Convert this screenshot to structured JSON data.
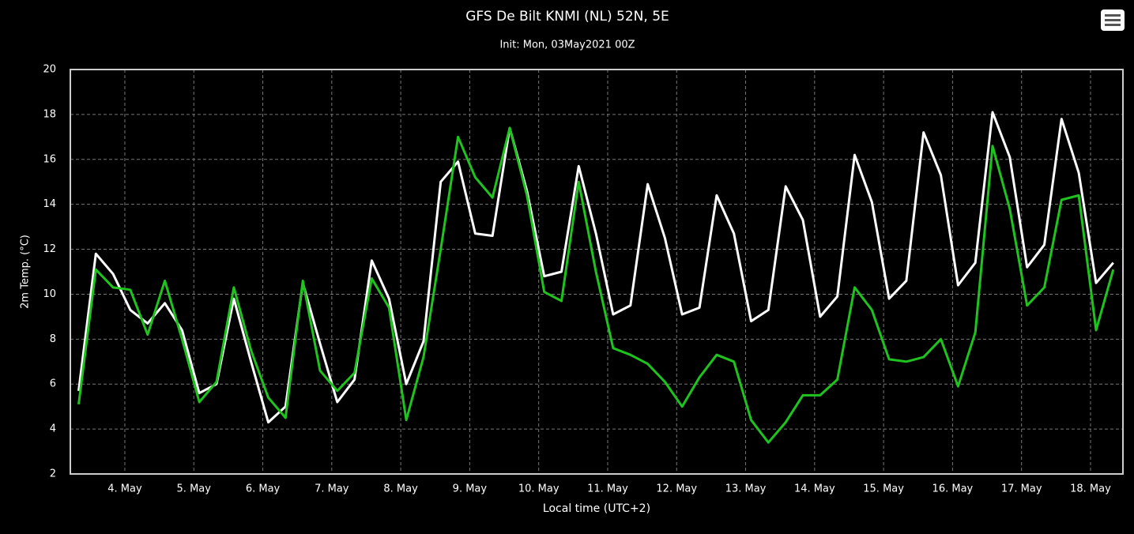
{
  "chart_data": {
    "type": "line",
    "title": "GFS De Bilt KNMI (NL) 52N, 5E",
    "subtitle": "Init: Mon, 03May2021 00Z",
    "y_label": "2m Temp. (°C)",
    "x_label": "Local time (UTC+2)",
    "x": [
      3.33,
      3.58,
      3.83,
      4.08,
      4.33,
      4.58,
      4.83,
      5.08,
      5.33,
      5.58,
      5.83,
      6.08,
      6.33,
      6.58,
      6.83,
      7.08,
      7.33,
      7.58,
      7.83,
      8.08,
      8.33,
      8.58,
      8.83,
      9.08,
      9.33,
      9.58,
      9.83,
      10.08,
      10.33,
      10.58,
      10.83,
      11.08,
      11.33,
      11.58,
      11.83,
      12.08,
      12.33,
      12.58,
      12.83,
      13.08,
      13.33,
      13.58,
      13.83,
      14.08,
      14.33,
      14.58,
      14.83,
      15.08,
      15.33,
      15.58,
      15.83,
      16.08,
      16.33,
      16.58,
      16.83,
      17.08,
      17.33,
      17.58,
      17.83,
      18.08,
      18.33
    ],
    "series": [
      {
        "color": "#ffffff",
        "values": [
          5.7,
          11.8,
          10.9,
          9.3,
          8.7,
          9.6,
          8.4,
          5.6,
          6.0,
          9.8,
          7.0,
          4.3,
          5.0,
          10.5,
          7.8,
          5.2,
          6.2,
          11.5,
          9.8,
          6.0,
          7.9,
          15.0,
          15.9,
          12.7,
          12.6,
          17.4,
          14.6,
          10.8,
          11.0,
          15.7,
          12.7,
          9.1,
          9.5,
          14.9,
          12.5,
          9.1,
          9.4,
          14.4,
          12.7,
          8.8,
          9.3,
          14.8,
          13.3,
          9.0,
          9.9,
          16.2,
          14.1,
          9.8,
          10.6,
          17.2,
          15.3,
          10.4,
          11.4,
          18.1,
          16.1,
          11.2,
          12.2,
          17.8,
          15.4,
          10.5,
          11.4
        ]
      },
      {
        "color": "#1ec31e",
        "values": [
          5.1,
          11.1,
          10.3,
          10.2,
          8.2,
          10.6,
          8.0,
          5.2,
          6.1,
          10.3,
          7.5,
          5.4,
          4.5,
          10.6,
          6.6,
          5.7,
          6.5,
          10.7,
          9.4,
          4.4,
          7.2,
          12.0,
          17.0,
          15.2,
          14.3,
          17.4,
          14.4,
          10.1,
          9.7,
          15.0,
          11.0,
          7.6,
          7.3,
          6.9,
          6.1,
          5.0,
          6.3,
          7.3,
          7.0,
          4.4,
          3.4,
          4.3,
          5.5,
          5.5,
          6.2,
          10.3,
          9.3,
          7.1,
          7.0,
          7.2,
          8.0,
          5.9,
          8.3,
          16.6,
          13.8,
          9.5,
          10.3,
          14.2,
          14.4,
          8.4,
          11.1
        ]
      }
    ],
    "xlim": [
      3.21,
      18.47
    ],
    "xticks": [
      {
        "value": 4,
        "label": "4. May"
      },
      {
        "value": 5,
        "label": "5. May"
      },
      {
        "value": 6,
        "label": "6. May"
      },
      {
        "value": 7,
        "label": "7. May"
      },
      {
        "value": 8,
        "label": "8. May"
      },
      {
        "value": 9,
        "label": "9. May"
      },
      {
        "value": 10,
        "label": "10. May"
      },
      {
        "value": 11,
        "label": "11. May"
      },
      {
        "value": 12,
        "label": "12. May"
      },
      {
        "value": 13,
        "label": "13. May"
      },
      {
        "value": 14,
        "label": "14. May"
      },
      {
        "value": 15,
        "label": "15. May"
      },
      {
        "value": 16,
        "label": "16. May"
      },
      {
        "value": 17,
        "label": "17. May"
      },
      {
        "value": 18,
        "label": "18. May"
      }
    ],
    "ylim": [
      2,
      20
    ],
    "yticks": [
      2,
      4,
      6,
      8,
      10,
      12,
      14,
      16,
      18,
      20
    ],
    "grid": true
  }
}
